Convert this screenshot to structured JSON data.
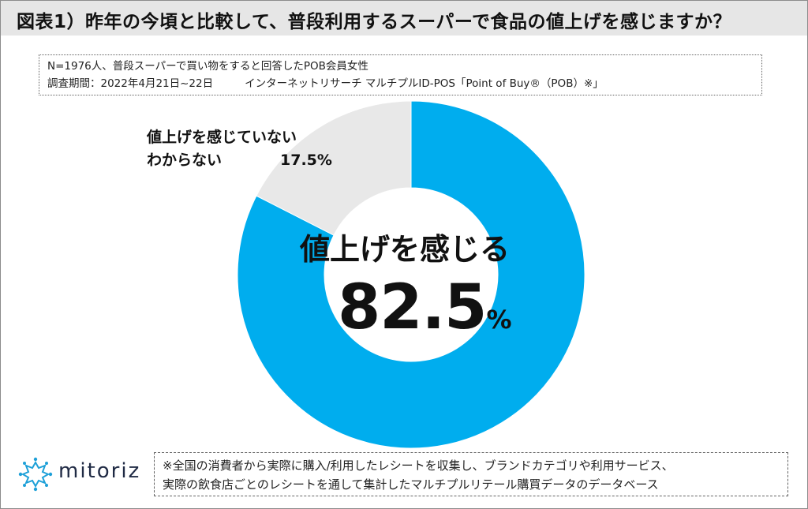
{
  "title": "図表1）昨年の今頃と比較して、普段利用するスーパーで食品の値上げを感じますか？",
  "note": {
    "line1": "N=1976人、普段スーパーで買い物をすると回答したPOB会員女性",
    "line2_period": "調査期間：2022年4月21日~22日",
    "line2_method": "インターネットリサーチ マルチプルID-POS「Point of Buy®（POB）※」"
  },
  "chart_data": {
    "type": "pie",
    "variant": "donut",
    "title": "図表1）昨年の今頃と比較して、普段利用するスーパーで食品の値上げを感じますか？",
    "unit": "%",
    "slices": [
      {
        "label": "値上げを感じる",
        "value": 82.5,
        "display": "82.5",
        "color": "#00adee"
      },
      {
        "label_line1": "値上げを感じていない",
        "label_line2": "わからない",
        "value": 17.5,
        "display": "17.5%",
        "color": "#e8e8e8"
      }
    ],
    "start_angle_deg": 0,
    "direction": "clockwise"
  },
  "center": {
    "label": "値上げを感じる",
    "value": "82.5",
    "unit": "%"
  },
  "logo": {
    "text": "mitoriz",
    "icon": "network-star-icon"
  },
  "footer": {
    "line1": "※全国の消費者から実際に購入/利用したレシートを収集し、ブランドカテゴリや利用サービス、",
    "line2": "実際の飲食店ごとのレシートを通して集計したマルチプルリテール購買データのデータベース"
  }
}
